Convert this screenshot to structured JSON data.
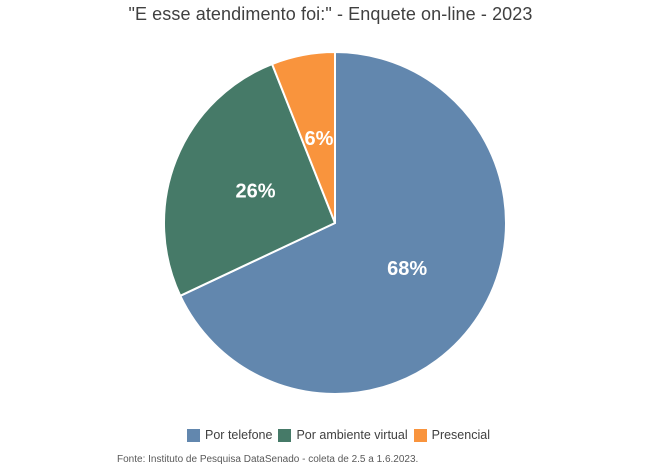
{
  "title": "\"E esse atendimento foi:\" - Enquete on-line - 2023",
  "source_note": "Fonte: Instituto de Pesquisa DataSenado - coleta de 2.5 a 1.6.2023.",
  "chart_data": {
    "type": "pie",
    "title": "\"E esse atendimento foi:\" - Enquete on-line - 2023",
    "categories": [
      "Por telefone",
      "Por ambiente virtual",
      "Presencial"
    ],
    "values": [
      68,
      26,
      6
    ],
    "data_labels": [
      "68%",
      "26%",
      "6%"
    ],
    "colors": [
      "#6287ae",
      "#467a68",
      "#f9943d"
    ],
    "data_label_color": "#ffffff",
    "slice_border_color": "#ffffff",
    "start_angle_deg": 0,
    "direction": "clockwise",
    "label_radius_fraction": 0.5,
    "legend_position": "bottom",
    "background": "#ffffff",
    "title_color": "#404040",
    "legend_text_color": "#404040",
    "source_note_color": "#595959"
  }
}
